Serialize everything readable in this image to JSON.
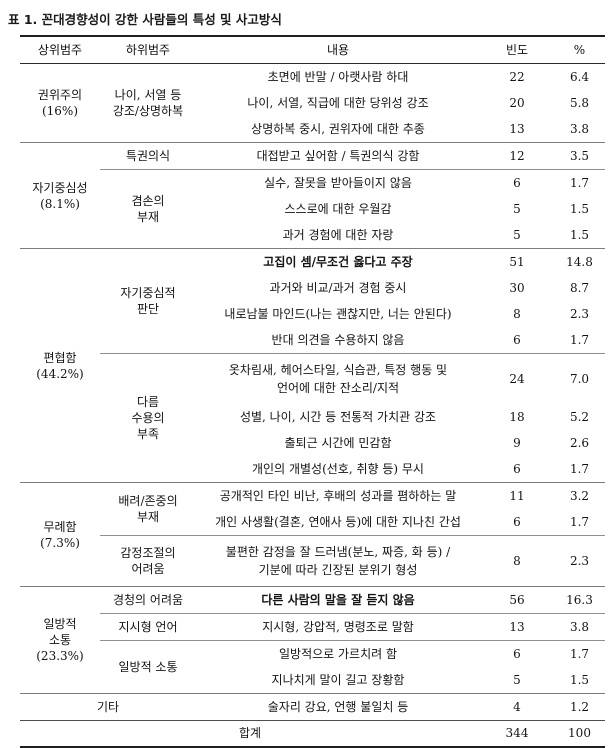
{
  "title": "표 1. 꼰대경향성이 강한 사람들의 특성 및 사고방식",
  "columns": {
    "category": "상위범주",
    "subcategory": "하위범주",
    "content": "내용",
    "frequency": "빈도",
    "percent": "%"
  },
  "groups": [
    {
      "category": "권위주의",
      "share": "(16%)",
      "subgroups": [
        {
          "label": "나이, 서열 등\n강조/상명하복",
          "rows": [
            {
              "content": "초면에 반말 / 아랫사람 하대",
              "freq": "22",
              "pct": "6.4"
            },
            {
              "content": "나이, 서열, 직급에 대한 당위성 강조",
              "freq": "20",
              "pct": "5.8"
            },
            {
              "content": "상명하복 중시, 권위자에 대한 추종",
              "freq": "13",
              "pct": "3.8"
            }
          ]
        }
      ]
    },
    {
      "category": "자기중심성",
      "share": "(8.1%)",
      "subgroups": [
        {
          "label": "특권의식",
          "rows": [
            {
              "content": "대접받고 싶어함 / 특권의식 강함",
              "freq": "12",
              "pct": "3.5"
            }
          ]
        },
        {
          "label": "겸손의\n부재",
          "rows": [
            {
              "content": "실수, 잘못을 받아들이지 않음",
              "freq": "6",
              "pct": "1.7"
            },
            {
              "content": "스스로에 대한 우월감",
              "freq": "5",
              "pct": "1.5"
            },
            {
              "content": "과거 경험에 대한 자랑",
              "freq": "5",
              "pct": "1.5"
            }
          ]
        }
      ]
    },
    {
      "category": "편협함",
      "share": "(44.2%)",
      "subgroups": [
        {
          "label": "자기중심적\n판단",
          "rows": [
            {
              "content": "고집이 셈/무조건 옳다고 주장",
              "freq": "51",
              "pct": "14.8",
              "bold": true
            },
            {
              "content": "과거와 비교/과거 경험 중시",
              "freq": "30",
              "pct": "8.7"
            },
            {
              "content": "내로남불 마인드(나는 괜찮지만, 너는 안된다)",
              "freq": "8",
              "pct": "2.3"
            },
            {
              "content": "반대 의견을 수용하지 않음",
              "freq": "6",
              "pct": "1.7"
            }
          ]
        },
        {
          "label": "다름\n수용의\n부족",
          "rows": [
            {
              "content": "옷차림새, 헤어스타일, 식습관, 특정 행동 및\n언어에 대한 잔소리/지적",
              "freq": "24",
              "pct": "7.0"
            },
            {
              "content": "성별, 나이, 시간 등 전통적 가치관 강조",
              "freq": "18",
              "pct": "5.2"
            },
            {
              "content": "출퇴근 시간에 민감함",
              "freq": "9",
              "pct": "2.6"
            },
            {
              "content": "개인의 개별성(선호, 취향 등) 무시",
              "freq": "6",
              "pct": "1.7"
            }
          ]
        }
      ]
    },
    {
      "category": "무례함",
      "share": "(7.3%)",
      "subgroups": [
        {
          "label": "배려/존중의\n부재",
          "rows": [
            {
              "content": "공개적인 타인 비난, 후배의 성과를 폄하하는 말",
              "freq": "11",
              "pct": "3.2"
            },
            {
              "content": "개인 사생활(결혼, 연애사 등)에 대한 지나친 간섭",
              "freq": "6",
              "pct": "1.7"
            }
          ]
        },
        {
          "label": "감정조절의\n어려움",
          "rows": [
            {
              "content": "불편한 감정을 잘 드러냄(분노, 짜증, 화 등) /\n기분에 따라 긴장된 분위기 형성",
              "freq": "8",
              "pct": "2.3"
            }
          ]
        }
      ]
    },
    {
      "category": "일방적\n소통",
      "share": "(23.3%)",
      "subgroups": [
        {
          "label": "경청의 어려움",
          "rows": [
            {
              "content": "다른 사람의 말을 잘 듣지 않음",
              "freq": "56",
              "pct": "16.3",
              "bold": true
            }
          ]
        },
        {
          "label": "지시형 언어",
          "rows": [
            {
              "content": "지시형, 강압적, 명령조로 말함",
              "freq": "13",
              "pct": "3.8"
            }
          ]
        },
        {
          "label": "일방적 소통",
          "rows": [
            {
              "content": "일방적으로 가르치려 함",
              "freq": "6",
              "pct": "1.7"
            },
            {
              "content": "지나치게 말이 길고 장황함",
              "freq": "5",
              "pct": "1.5"
            }
          ]
        }
      ]
    }
  ],
  "etc": {
    "category": "기타",
    "content": "술자리 강요, 언행 불일치 등",
    "freq": "4",
    "pct": "1.2"
  },
  "total": {
    "label": "합계",
    "freq": "344",
    "pct": "100"
  }
}
